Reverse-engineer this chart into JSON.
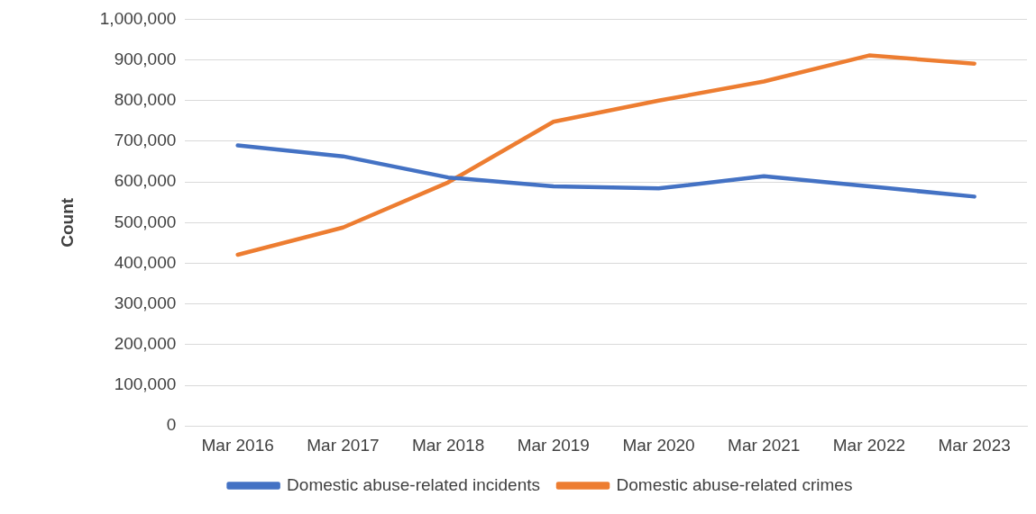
{
  "chart_data": {
    "type": "line",
    "ylabel": "Count",
    "categories": [
      "Mar 2016",
      "Mar 2017",
      "Mar 2018",
      "Mar 2019",
      "Mar 2020",
      "Mar 2021",
      "Mar 2022",
      "Mar 2023"
    ],
    "series": [
      {
        "name": "Domestic abuse-related incidents",
        "color": "#4472c4",
        "values": [
          690000,
          663000,
          611000,
          589000,
          584000,
          614000,
          589000,
          564000
        ]
      },
      {
        "name": "Domestic abuse-related crimes",
        "color": "#ed7d31",
        "values": [
          421000,
          488000,
          599000,
          748000,
          800000,
          847000,
          911000,
          891000
        ]
      }
    ],
    "ylim": [
      0,
      1000000
    ],
    "yticks": [
      0,
      {
        "value": 100000,
        "label": "100,000"
      },
      {
        "value": 200000,
        "label": "200,000"
      },
      {
        "value": 300000,
        "label": "300,000"
      },
      {
        "value": 400000,
        "label": "400,000"
      },
      {
        "value": 500000,
        "label": "500,000"
      },
      {
        "value": 600000,
        "label": "600,000"
      },
      {
        "value": 700000,
        "label": "700,000"
      },
      {
        "value": 800000,
        "label": "800,000"
      },
      {
        "value": 900000,
        "label": "900,000"
      },
      {
        "value": 1000000,
        "label": "1,000,000"
      }
    ],
    "grid": "y",
    "legend": "bottom",
    "marker": "none"
  }
}
